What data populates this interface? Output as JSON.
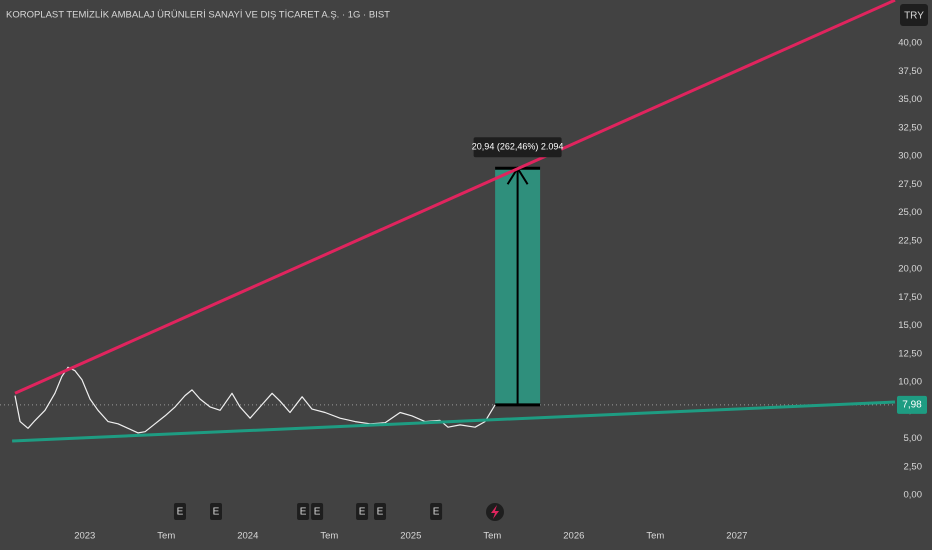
{
  "chart_data": {
    "type": "line",
    "title": "KOROPLAST TEMİZLİK AMBALAJ ÜRÜNLERİ SANAYİ VE DIŞ TİCARET A.Ş. · 1G · BIST",
    "currency": "TRY",
    "xlim": [
      2022.48,
      2027.97
    ],
    "ylim": [
      -1.77,
      43.81
    ],
    "xticks": [
      {
        "value": 2023,
        "label": "2023"
      },
      {
        "value": 2023.5,
        "label": "Tem"
      },
      {
        "value": 2024,
        "label": "2024"
      },
      {
        "value": 2024.5,
        "label": "Tem"
      },
      {
        "value": 2025,
        "label": "2025"
      },
      {
        "value": 2025.5,
        "label": "Tem"
      },
      {
        "value": 2026,
        "label": "2026"
      },
      {
        "value": 2026.5,
        "label": "Tem"
      },
      {
        "value": 2027,
        "label": "2027"
      }
    ],
    "yticks": [
      {
        "value": 0,
        "label": "0,00"
      },
      {
        "value": 2.5,
        "label": "2,50"
      },
      {
        "value": 5,
        "label": "5,00"
      },
      {
        "value": 7.5,
        "label": "7,50"
      },
      {
        "value": 10,
        "label": "10,00"
      },
      {
        "value": 12.5,
        "label": "12,50"
      },
      {
        "value": 15,
        "label": "15,00"
      },
      {
        "value": 17.5,
        "label": "17,50"
      },
      {
        "value": 20,
        "label": "20,00"
      },
      {
        "value": 22.5,
        "label": "22,50"
      },
      {
        "value": 25,
        "label": "25,00"
      },
      {
        "value": 27.5,
        "label": "27,50"
      },
      {
        "value": 30,
        "label": "30,00"
      },
      {
        "value": 32.5,
        "label": "32,50"
      },
      {
        "value": 35,
        "label": "35,00"
      },
      {
        "value": 37.5,
        "label": "37,50"
      },
      {
        "value": 40,
        "label": "40,00"
      }
    ],
    "series": [
      {
        "color": "#f0f0f0",
        "x": [
          2022.572,
          2022.603,
          2022.652,
          2022.695,
          2022.756,
          2022.817,
          2022.86,
          2022.897,
          2022.94,
          2022.983,
          2023.032,
          2023.081,
          2023.143,
          2023.204,
          2023.265,
          2023.327,
          2023.37,
          2023.431,
          2023.492,
          2023.554,
          2023.615,
          2023.658,
          2023.707,
          2023.768,
          2023.83,
          2023.903,
          2023.952,
          2024.014,
          2024.087,
          2024.149,
          2024.198,
          2024.259,
          2024.333,
          2024.394,
          2024.474,
          2024.566,
          2024.658,
          2024.75,
          2024.842,
          2024.934,
          2025.008,
          2025.087,
          2025.179,
          2025.228,
          2025.302,
          2025.394,
          2025.455,
          2025.517
        ],
        "values": [
          8.8,
          6.5,
          5.9,
          6.6,
          7.5,
          9.0,
          10.5,
          11.3,
          11.0,
          10.2,
          8.5,
          7.5,
          6.5,
          6.3,
          5.9,
          5.5,
          5.6,
          6.3,
          7.0,
          7.8,
          8.8,
          9.3,
          8.5,
          7.8,
          7.5,
          9.0,
          7.8,
          6.8,
          8.0,
          9.0,
          8.3,
          7.3,
          8.7,
          7.6,
          7.3,
          6.8,
          6.5,
          6.3,
          6.4,
          7.3,
          7.0,
          6.5,
          6.6,
          6.0,
          6.2,
          6.0,
          6.5,
          7.98
        ]
      },
      {
        "color": "#e0245e",
        "x": [
          2022.572,
          2027.97
        ],
        "values": [
          9.0,
          43.8
        ]
      },
      {
        "color": "#1e9c82",
        "x": [
          2022.554,
          2027.97
        ],
        "values": [
          4.78,
          8.23
        ]
      }
    ],
    "last_price": {
      "value": 7.98,
      "label": "7,98",
      "color": "#1e9c82"
    },
    "measure": {
      "x": [
        2025.517,
        2025.793
      ],
      "from": 7.98,
      "change": 20.94,
      "label": "20,94 (262,46%) 2.094",
      "color": "#2f8f7c"
    },
    "events": [
      {
        "x": 2023.584,
        "label": "E"
      },
      {
        "x": 2023.805,
        "label": "E"
      },
      {
        "x": 2024.339,
        "label": "E"
      },
      {
        "x": 2024.425,
        "label": "E"
      },
      {
        "x": 2024.701,
        "label": "E"
      },
      {
        "x": 2024.811,
        "label": "E"
      },
      {
        "x": 2025.155,
        "label": "E"
      }
    ]
  }
}
